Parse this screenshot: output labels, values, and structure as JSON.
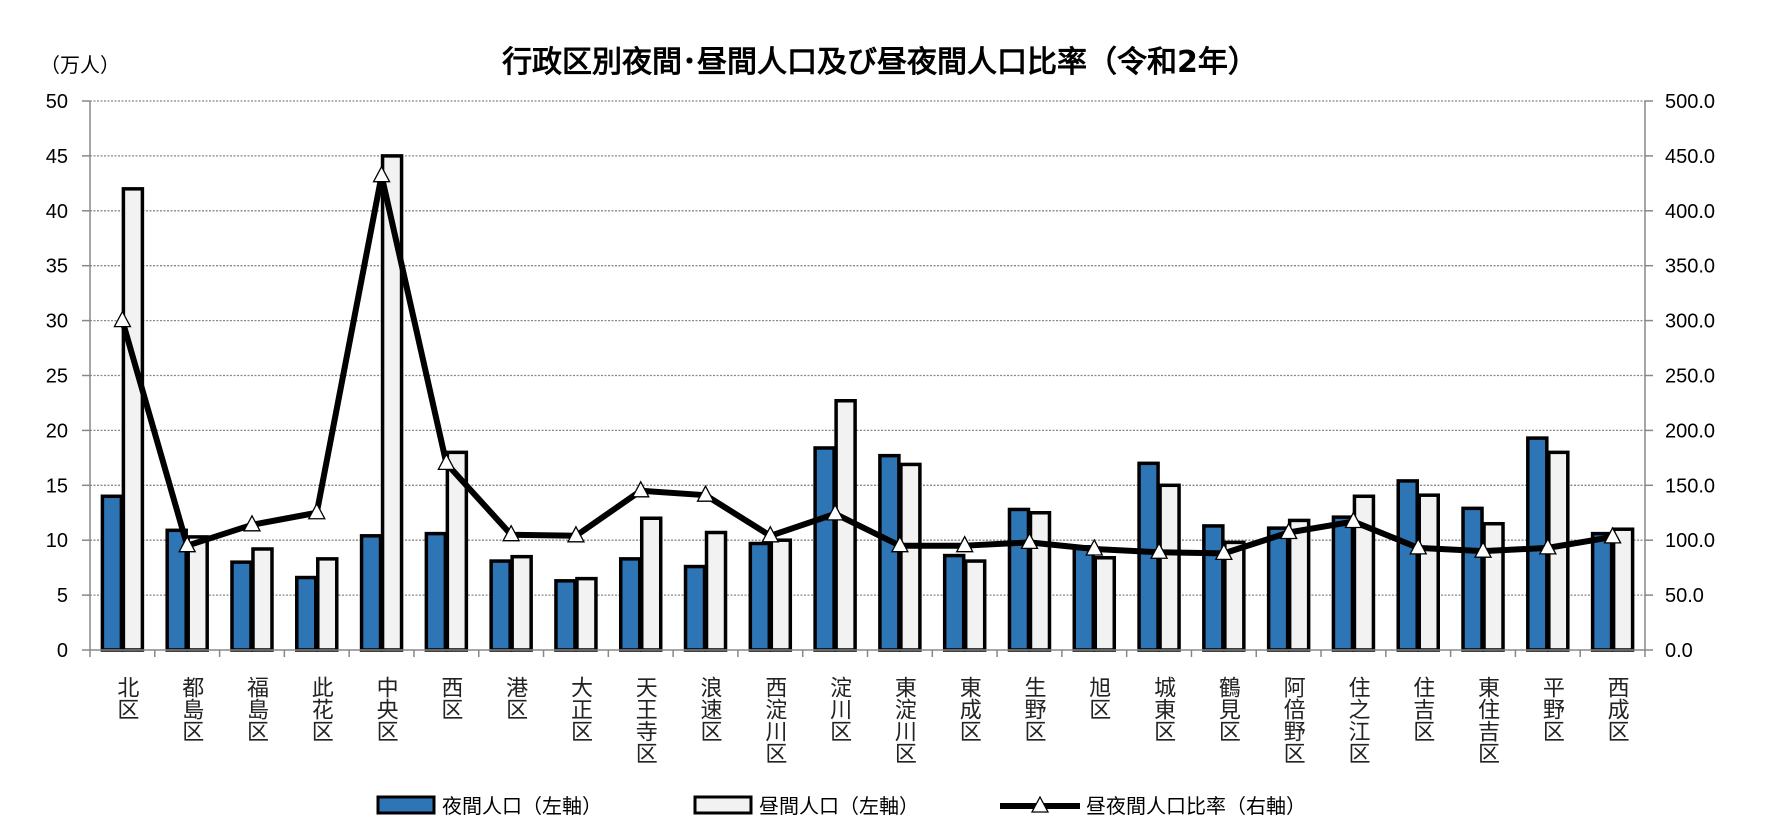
{
  "chart_data": {
    "type": "bar",
    "title": "行政区別夜間･昼間人口及び昼夜間人口比率（令和2年）",
    "ylabel": "（万人）",
    "ylim": [
      0,
      50
    ],
    "y2lim": [
      0,
      500
    ],
    "yticks": [
      "0",
      "5",
      "10",
      "15",
      "20",
      "25",
      "30",
      "35",
      "40",
      "45",
      "50"
    ],
    "y2ticks": [
      "0.0",
      "50.0",
      "100.0",
      "150.0",
      "200.0",
      "250.0",
      "300.0",
      "350.0",
      "400.0",
      "450.0",
      "500.0"
    ],
    "grid": true,
    "legend_placement": "bottom",
    "categories": [
      "北区",
      "都島区",
      "福島区",
      "此花区",
      "中央区",
      "西区",
      "港区",
      "大正区",
      "天王寺区",
      "浪速区",
      "西淀川区",
      "淀川区",
      "東淀川区",
      "東成区",
      "生野区",
      "旭区",
      "城東区",
      "鶴見区",
      "阿倍野区",
      "住之江区",
      "住吉区",
      "東住吉区",
      "平野区",
      "西成区"
    ],
    "series": [
      {
        "name": "夜間人口（左軸）",
        "type": "bar",
        "axis": "left",
        "color": "#2E75B6",
        "values": [
          14.0,
          10.9,
          8.0,
          6.6,
          10.4,
          10.6,
          8.1,
          6.3,
          8.3,
          7.6,
          9.7,
          18.4,
          17.7,
          8.6,
          12.8,
          9.4,
          17.0,
          11.3,
          11.1,
          12.1,
          15.4,
          12.9,
          19.3,
          10.6
        ]
      },
      {
        "name": "昼間人口（左軸）",
        "type": "bar",
        "axis": "left",
        "color": "#F2F2F2",
        "values": [
          42.0,
          10.3,
          9.2,
          8.3,
          45.0,
          18.0,
          8.5,
          6.5,
          12.0,
          10.7,
          10.0,
          22.7,
          16.9,
          8.1,
          12.5,
          8.4,
          15.0,
          9.8,
          11.8,
          14.0,
          14.1,
          11.5,
          18.0,
          11.0
        ]
      },
      {
        "name": "昼夜間人口比率（右軸）",
        "type": "line",
        "axis": "right",
        "color": "#000000",
        "marker": "triangle",
        "values": [
          300.0,
          95.0,
          114.0,
          125.0,
          432.0,
          170.0,
          105.0,
          104.0,
          145.0,
          141.0,
          104.0,
          124.0,
          95.0,
          95.0,
          98.0,
          92.0,
          89.0,
          88.0,
          107.0,
          117.0,
          93.0,
          90.0,
          93.0,
          103.0
        ]
      }
    ]
  }
}
